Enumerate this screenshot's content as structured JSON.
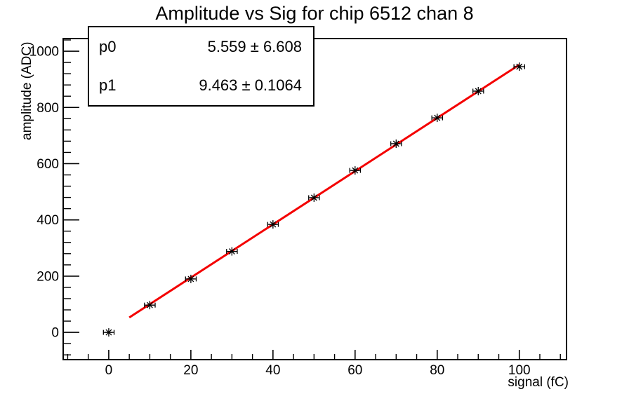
{
  "title": "Amplitude vs Sig for chip 6512 chan 8",
  "stats": {
    "rows": [
      {
        "name": "p0",
        "value": "5.559 ± 6.608"
      },
      {
        "name": "p1",
        "value": "9.463 ± 0.1064"
      }
    ]
  },
  "chart_data": {
    "type": "scatter",
    "title": "Amplitude vs Sig for chip 6512 chan 8",
    "xlabel": "signal (fC)",
    "ylabel": "amplitude (ADC)",
    "x": [
      0,
      10,
      20,
      30,
      40,
      50,
      60,
      70,
      80,
      90,
      100
    ],
    "y": [
      0,
      97,
      190,
      288,
      384,
      479,
      576,
      671,
      763,
      858,
      945
    ],
    "x_err": 1.3,
    "marker": "asterisk",
    "marker_color": "#000000",
    "fit": {
      "p0": 5.559,
      "p1": 9.463,
      "range": [
        5,
        100
      ],
      "color": "#f40000",
      "width": 3
    },
    "xlim": [
      -11.1,
      111.5
    ],
    "ylim": [
      -97,
      1045
    ],
    "x_ticks": [
      0,
      20,
      40,
      60,
      80,
      100
    ],
    "x_tick_labels": [
      "0",
      "20",
      "40",
      "60",
      "80",
      "100"
    ],
    "x_minor_step": 5,
    "y_ticks": [
      0,
      200,
      400,
      600,
      800,
      1000
    ],
    "y_tick_labels": [
      "0",
      "200",
      "400",
      "600",
      "800",
      "1000"
    ],
    "y_minor_step": 40,
    "grid": "off",
    "legend": "none",
    "frame_color": "#000000",
    "background": "#ffffff"
  }
}
